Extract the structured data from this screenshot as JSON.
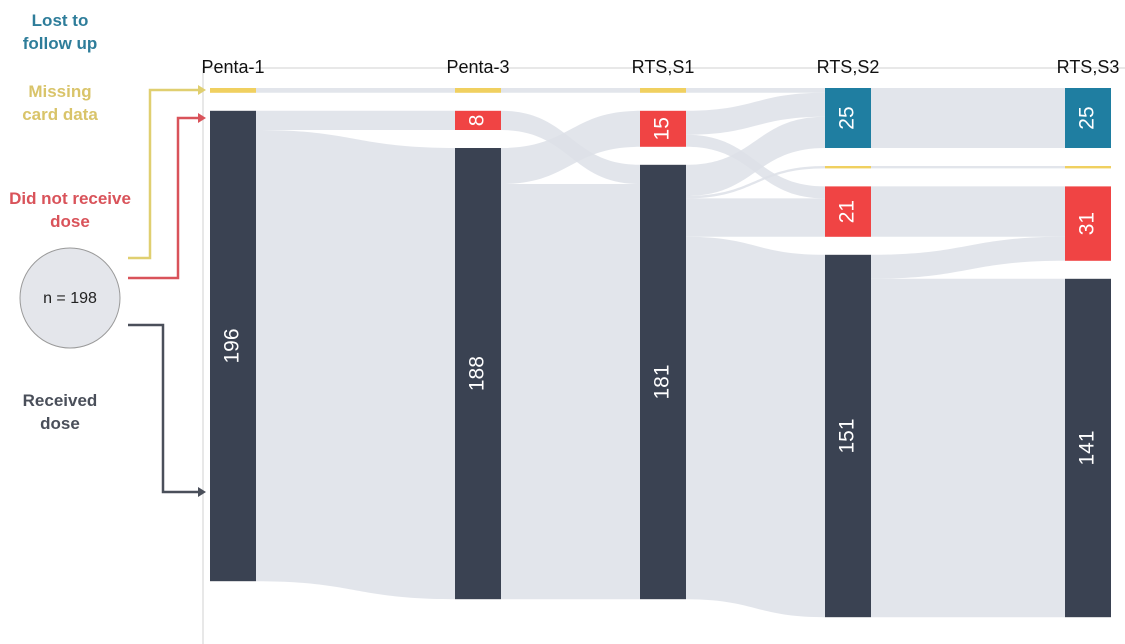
{
  "chart_data": {
    "type": "sankey",
    "stages": [
      "Penta-1",
      "Penta-3",
      "RTS,S1",
      "RTS,S2",
      "RTS,S3"
    ],
    "total_label": "n = 198",
    "series": [
      {
        "name": "Lost to follow up",
        "color": "#1f7ea1",
        "labels": true,
        "values": [
          null,
          null,
          null,
          25,
          25
        ]
      },
      {
        "name": "Missing card data",
        "color": "#f0d060",
        "labels": false,
        "values": [
          2,
          2,
          2,
          1,
          1
        ]
      },
      {
        "name": "Did not receive dose",
        "color": "#f04444",
        "labels": true,
        "values": [
          null,
          8,
          15,
          21,
          31
        ]
      },
      {
        "name": "Received dose",
        "color": "#3a4252",
        "labels": true,
        "values": [
          196,
          188,
          181,
          151,
          141
        ]
      }
    ],
    "flows": [
      [
        0,
        1,
        1,
        2
      ],
      [
        0,
        3,
        2,
        8
      ],
      [
        0,
        3,
        3,
        188
      ],
      [
        1,
        1,
        1,
        2
      ],
      [
        1,
        2,
        3,
        8
      ],
      [
        1,
        3,
        2,
        15
      ],
      [
        1,
        3,
        3,
        173
      ],
      [
        2,
        1,
        0,
        2
      ],
      [
        2,
        2,
        0,
        10
      ],
      [
        2,
        2,
        2,
        5
      ],
      [
        2,
        3,
        0,
        13
      ],
      [
        2,
        3,
        1,
        1
      ],
      [
        2,
        3,
        2,
        16
      ],
      [
        2,
        3,
        3,
        151
      ],
      [
        3,
        0,
        0,
        25
      ],
      [
        3,
        1,
        1,
        1
      ],
      [
        3,
        2,
        2,
        21
      ],
      [
        3,
        3,
        2,
        10
      ],
      [
        3,
        3,
        3,
        141
      ]
    ]
  }
}
